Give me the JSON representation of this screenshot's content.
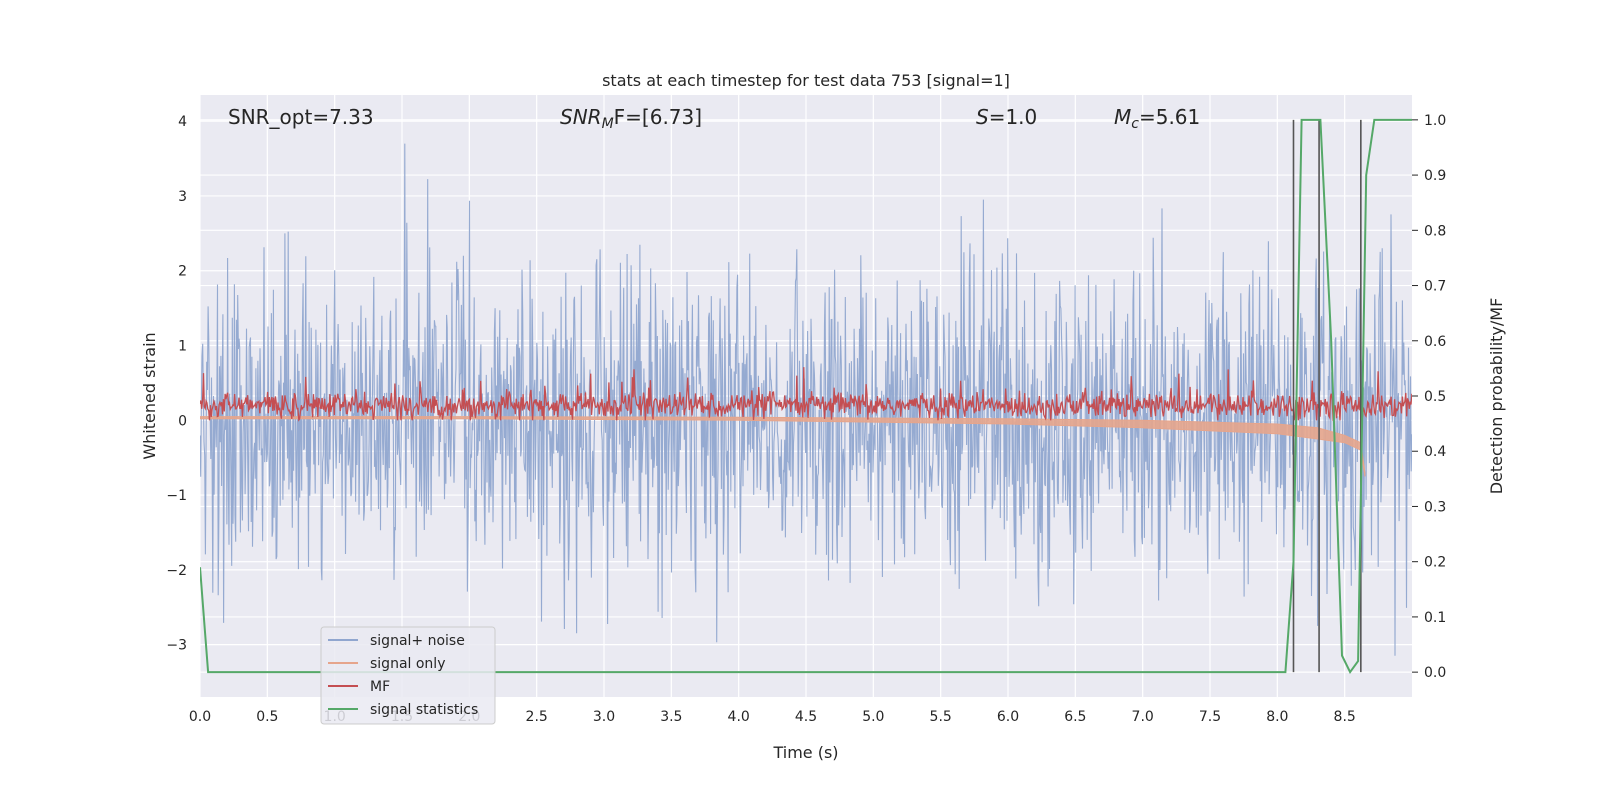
{
  "chart_data": {
    "type": "line",
    "title": "stats at each timestep for test data 753 [signal=1]",
    "xlabel": "Time (s)",
    "ylabel": "Whitened strain",
    "ylabel_right": "Detection probability/MF",
    "xlim": [
      0.0,
      9.0
    ],
    "ylim": [
      -3.7,
      4.35
    ],
    "ylim_right": [
      -0.045,
      1.045
    ],
    "x_ticks": [
      "0.0",
      "0.5",
      "1.0",
      "1.5",
      "2.0",
      "2.5",
      "3.0",
      "3.5",
      "4.0",
      "4.5",
      "5.0",
      "5.5",
      "6.0",
      "6.5",
      "7.0",
      "7.5",
      "8.0",
      "8.5"
    ],
    "y_ticks": [
      "4",
      "3",
      "2",
      "1",
      "0",
      "−1",
      "−2",
      "−3"
    ],
    "y_right_ticks": [
      "1.0",
      "0.9",
      "0.8",
      "0.7",
      "0.6",
      "0.5",
      "0.4",
      "0.3",
      "0.2",
      "0.1",
      "0.0"
    ],
    "grid": true,
    "legend_position": "lower-left",
    "annotations": {
      "snr_opt": "SNR_opt=7.33",
      "snr_mf_name": "SNR",
      "snr_mf_sub": "M",
      "snr_mf_rest": "F=[6.73]",
      "s_name": "S",
      "s_rest": "=1.0",
      "mc_name": "M",
      "mc_sub": "c",
      "mc_rest": "=5.61"
    },
    "series": [
      {
        "name": "signal+ noise",
        "color": "#90a6cf",
        "axis": "left",
        "amplitude_range": [
          -3.35,
          4.0
        ]
      },
      {
        "name": "signal only",
        "color": "#e6a58c",
        "axis": "left",
        "x": [
          0.0,
          2.0,
          4.0,
          6.0,
          7.0,
          8.0,
          8.3,
          8.5,
          8.62,
          8.65
        ],
        "upper": [
          0.05,
          0.05,
          0.04,
          0.02,
          0.0,
          -0.05,
          -0.1,
          -0.2,
          -0.3,
          -0.7
        ],
        "lower": [
          0.02,
          0.02,
          0.0,
          -0.05,
          -0.1,
          -0.18,
          -0.25,
          -0.3,
          -0.4,
          -0.75
        ]
      },
      {
        "name": "MF",
        "color": "#c44e52",
        "axis": "left",
        "mean": 0.2,
        "range": [
          0.0,
          0.73
        ]
      },
      {
        "name": "signal statistics",
        "color": "#55a868",
        "axis": "right",
        "x": [
          0.0,
          0.06,
          0.12,
          8.06,
          8.12,
          8.18,
          8.26,
          8.32,
          8.4,
          8.48,
          8.54,
          8.6,
          8.66,
          8.72,
          9.0
        ],
        "y": [
          0.19,
          0.0,
          0.0,
          0.0,
          0.2,
          1.0,
          1.0,
          1.0,
          0.6,
          0.03,
          0.0,
          0.02,
          0.9,
          1.0,
          1.0
        ]
      }
    ],
    "vertical_markers": {
      "color": "#555555",
      "x": [
        8.12,
        8.31,
        8.62
      ],
      "y_range": [
        0.0,
        1.0
      ]
    }
  }
}
